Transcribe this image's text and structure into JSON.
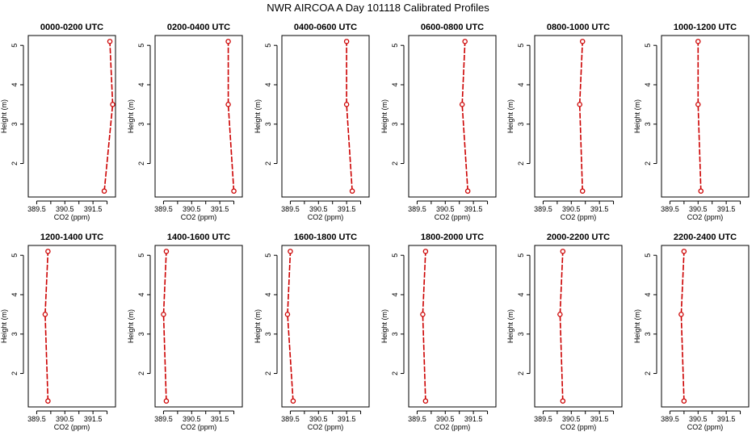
{
  "figure": {
    "title": "NWR AIRCOA A  Day 101118  Calibrated Profiles"
  },
  "colors": {
    "line": "#cc0000",
    "marker": "#cc0000",
    "axis": "#000000"
  },
  "chart_data": [
    {
      "type": "line",
      "title": "0000-0200 UTC",
      "xlabel": "CO2 (ppm)",
      "ylabel": "Height (m)",
      "xlim": [
        389.2,
        392.3
      ],
      "ylim": [
        1.15,
        5.25
      ],
      "xticks": [
        "389.5",
        "390.5",
        "391.5"
      ],
      "yticks": [
        "2",
        "3",
        "4",
        "5"
      ],
      "grid": false,
      "series": [
        {
          "x": [
            391.9,
            392.2,
            392.1
          ],
          "y": [
            1.3,
            3.5,
            5.1
          ]
        }
      ]
    },
    {
      "type": "line",
      "title": "0200-0400 UTC",
      "xlabel": "CO2 (ppm)",
      "ylabel": "Height (m)",
      "xlim": [
        389.2,
        392.3
      ],
      "ylim": [
        1.15,
        5.25
      ],
      "xticks": [
        "389.5",
        "390.5",
        "391.5"
      ],
      "yticks": [
        "2",
        "3",
        "4",
        "5"
      ],
      "grid": false,
      "series": [
        {
          "x": [
            392.0,
            391.8,
            391.8
          ],
          "y": [
            1.3,
            3.5,
            5.1
          ]
        }
      ]
    },
    {
      "type": "line",
      "title": "0400-0600 UTC",
      "xlabel": "CO2 (ppm)",
      "ylabel": "Height (m)",
      "xlim": [
        389.2,
        392.3
      ],
      "ylim": [
        1.15,
        5.25
      ],
      "xticks": [
        "389.5",
        "390.5",
        "391.5"
      ],
      "yticks": [
        "2",
        "3",
        "4",
        "5"
      ],
      "grid": false,
      "series": [
        {
          "x": [
            391.7,
            391.5,
            391.5
          ],
          "y": [
            1.3,
            3.5,
            5.1
          ]
        }
      ]
    },
    {
      "type": "line",
      "title": "0600-0800 UTC",
      "xlabel": "CO2 (ppm)",
      "ylabel": "Height (m)",
      "xlim": [
        389.2,
        392.3
      ],
      "ylim": [
        1.15,
        5.25
      ],
      "xticks": [
        "389.5",
        "390.5",
        "391.5"
      ],
      "yticks": [
        "2",
        "3",
        "4",
        "5"
      ],
      "grid": false,
      "series": [
        {
          "x": [
            391.3,
            391.1,
            391.2
          ],
          "y": [
            1.3,
            3.5,
            5.1
          ]
        }
      ]
    },
    {
      "type": "line",
      "title": "0800-1000 UTC",
      "xlabel": "CO2 (ppm)",
      "ylabel": "Height (m)",
      "xlim": [
        389.2,
        392.3
      ],
      "ylim": [
        1.15,
        5.25
      ],
      "xticks": [
        "389.5",
        "390.5",
        "391.5"
      ],
      "yticks": [
        "2",
        "3",
        "4",
        "5"
      ],
      "grid": false,
      "series": [
        {
          "x": [
            390.9,
            390.8,
            390.9
          ],
          "y": [
            1.3,
            3.5,
            5.1
          ]
        }
      ]
    },
    {
      "type": "line",
      "title": "1000-1200 UTC",
      "xlabel": "CO2 (ppm)",
      "ylabel": "Height (m)",
      "xlim": [
        389.2,
        392.3
      ],
      "ylim": [
        1.15,
        5.25
      ],
      "xticks": [
        "389.5",
        "390.5",
        "391.5"
      ],
      "yticks": [
        "2",
        "3",
        "4",
        "5"
      ],
      "grid": false,
      "series": [
        {
          "x": [
            390.6,
            390.5,
            390.5
          ],
          "y": [
            1.3,
            3.5,
            5.1
          ]
        }
      ]
    },
    {
      "type": "line",
      "title": "1200-1400 UTC",
      "xlabel": "CO2 (ppm)",
      "ylabel": "Height (m)",
      "xlim": [
        389.2,
        392.3
      ],
      "ylim": [
        1.15,
        5.25
      ],
      "xticks": [
        "389.5",
        "390.5",
        "391.5"
      ],
      "yticks": [
        "2",
        "3",
        "4",
        "5"
      ],
      "grid": false,
      "series": [
        {
          "x": [
            389.9,
            389.8,
            389.9
          ],
          "y": [
            1.3,
            3.5,
            5.1
          ]
        }
      ]
    },
    {
      "type": "line",
      "title": "1400-1600 UTC",
      "xlabel": "CO2 (ppm)",
      "ylabel": "Height (m)",
      "xlim": [
        389.2,
        392.3
      ],
      "ylim": [
        1.15,
        5.25
      ],
      "xticks": [
        "389.5",
        "390.5",
        "391.5"
      ],
      "yticks": [
        "2",
        "3",
        "4",
        "5"
      ],
      "grid": false,
      "series": [
        {
          "x": [
            389.6,
            389.5,
            389.6
          ],
          "y": [
            1.3,
            3.5,
            5.1
          ]
        }
      ]
    },
    {
      "type": "line",
      "title": "1600-1800 UTC",
      "xlabel": "CO2 (ppm)",
      "ylabel": "Height (m)",
      "xlim": [
        389.2,
        392.3
      ],
      "ylim": [
        1.15,
        5.25
      ],
      "xticks": [
        "389.5",
        "390.5",
        "391.5"
      ],
      "yticks": [
        "2",
        "3",
        "4",
        "5"
      ],
      "grid": false,
      "series": [
        {
          "x": [
            389.6,
            389.4,
            389.5
          ],
          "y": [
            1.3,
            3.5,
            5.1
          ]
        }
      ]
    },
    {
      "type": "line",
      "title": "1800-2000 UTC",
      "xlabel": "CO2 (ppm)",
      "ylabel": "Height (m)",
      "xlim": [
        389.2,
        392.3
      ],
      "ylim": [
        1.15,
        5.25
      ],
      "xticks": [
        "389.5",
        "390.5",
        "391.5"
      ],
      "yticks": [
        "2",
        "3",
        "4",
        "5"
      ],
      "grid": false,
      "series": [
        {
          "x": [
            389.8,
            389.7,
            389.8
          ],
          "y": [
            1.3,
            3.5,
            5.1
          ]
        }
      ]
    },
    {
      "type": "line",
      "title": "2000-2200 UTC",
      "xlabel": "CO2 (ppm)",
      "ylabel": "Height (m)",
      "xlim": [
        389.2,
        392.3
      ],
      "ylim": [
        1.15,
        5.25
      ],
      "xticks": [
        "389.5",
        "390.5",
        "391.5"
      ],
      "yticks": [
        "2",
        "3",
        "4",
        "5"
      ],
      "grid": false,
      "series": [
        {
          "x": [
            390.2,
            390.1,
            390.2
          ],
          "y": [
            1.3,
            3.5,
            5.1
          ]
        }
      ]
    },
    {
      "type": "line",
      "title": "2200-2400 UTC",
      "xlabel": "CO2 (ppm)",
      "ylabel": "Height (m)",
      "xlim": [
        389.2,
        392.3
      ],
      "ylim": [
        1.15,
        5.25
      ],
      "xticks": [
        "389.5",
        "390.5",
        "391.5"
      ],
      "yticks": [
        "2",
        "3",
        "4",
        "5"
      ],
      "grid": false,
      "series": [
        {
          "x": [
            390.0,
            389.9,
            390.0
          ],
          "y": [
            1.3,
            3.5,
            5.1
          ]
        }
      ]
    }
  ]
}
